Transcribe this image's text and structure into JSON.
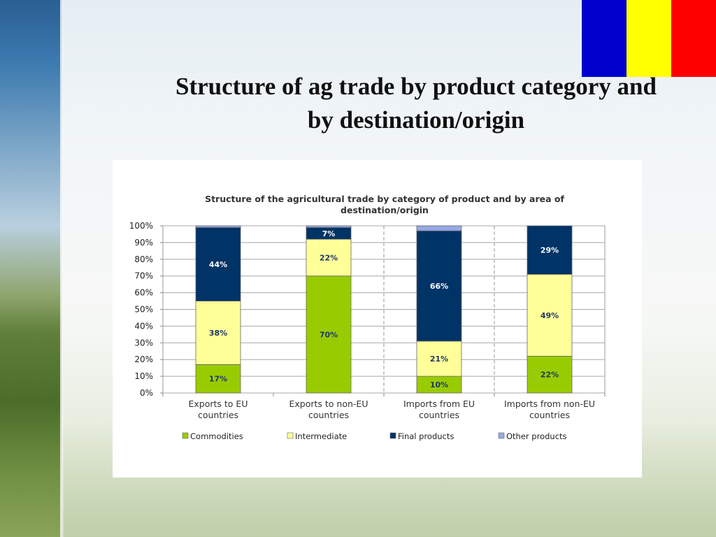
{
  "slide": {
    "title_line1": "Structure of ag trade by product category and",
    "title_line2": "by destination/origin",
    "flag_colors": [
      "#0000cc",
      "#ffff00",
      "#ff0000"
    ]
  },
  "chart_data": {
    "type": "bar",
    "stacked": true,
    "title_line1": "Structure of the agricultural trade by category of product and by area of",
    "title_line2": "destination/origin",
    "categories": [
      "Exports to EU countries",
      "Exports to non-EU countries",
      "Imports from EU countries",
      "Imports from non-EU countries"
    ],
    "category_lines": [
      [
        "Exports to EU",
        "countries"
      ],
      [
        "Exports to non-EU",
        "countries"
      ],
      [
        "Imports from EU",
        "countries"
      ],
      [
        "Imports from non-EU",
        "countries"
      ]
    ],
    "series": [
      {
        "name": "Commodities",
        "color": "#99cc00",
        "values": [
          17,
          70,
          10,
          22
        ],
        "labels": [
          "17%",
          "70%",
          "10%",
          "22%"
        ]
      },
      {
        "name": "Intermediate",
        "color": "#ffff99",
        "values": [
          38,
          22,
          21,
          49
        ],
        "labels": [
          "38%",
          "22%",
          "21%",
          "49%"
        ]
      },
      {
        "name": "Final products",
        "color": "#003366",
        "values": [
          44,
          7,
          66,
          29
        ],
        "labels": [
          "44%",
          "7%",
          "66%",
          "29%"
        ]
      },
      {
        "name": "Other products",
        "color": "#99a8e6",
        "values": [
          1,
          1,
          3,
          0
        ],
        "labels": [
          "",
          "",
          "",
          ""
        ]
      }
    ],
    "y_ticks": [
      "0%",
      "10%",
      "20%",
      "30%",
      "40%",
      "50%",
      "60%",
      "70%",
      "80%",
      "90%",
      "100%"
    ],
    "ylim": [
      0,
      100
    ],
    "grid": true,
    "separator_between_categories": [
      1,
      2
    ],
    "legend_position": "bottom"
  }
}
